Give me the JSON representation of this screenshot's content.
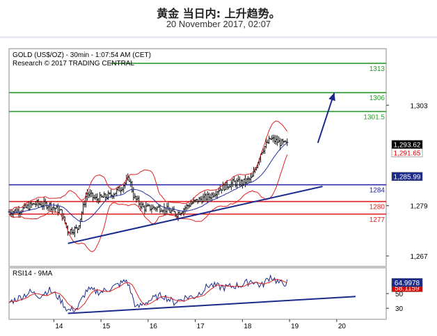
{
  "page": {
    "title": "黄金 当日内: 上升趋势。",
    "subtitle": "20 November 2017, 02:07"
  },
  "chart_data": {
    "type": "candlestick",
    "header_line1": "GOLD (US$/OZ) - 30min - 1:07:54 AM (CET)",
    "header_line2": "Research © 2017 TRADING CENTRAL",
    "x_tick_labels": [
      "14",
      "15",
      "16",
      "17",
      "18",
      "19",
      "20"
    ],
    "x_tick_days": [
      14,
      15,
      16,
      17,
      18,
      19,
      20
    ],
    "x_range_days": [
      13.05,
      21.05
    ],
    "price_axis": {
      "ticks": [
        1267,
        1279,
        1303
      ],
      "tick_labels": [
        "1,267",
        "1,279",
        "1,303"
      ],
      "ylim": [
        1264.5,
        1316.5
      ]
    },
    "price_tags": [
      {
        "label": "1,293.62",
        "value": 1293.62,
        "bg": "#000000",
        "color": "#ffffff"
      },
      {
        "label": "1,291.65",
        "value": 1291.65,
        "bg": "#ffffff",
        "color": "#e00000"
      },
      {
        "label": "1,285.99",
        "value": 1285.99,
        "bg": "#1b2a8c",
        "color": "#ffffff"
      }
    ],
    "levels": [
      {
        "label": "1313",
        "value": 1313,
        "color": "#2e9a2e",
        "x_start_day": 15.2
      },
      {
        "label": "1306",
        "value": 1306,
        "color": "#2e9a2e",
        "x_start_day": 13.05
      },
      {
        "label": "1301.5",
        "value": 1301.5,
        "color": "#2e9a2e",
        "x_start_day": 13.05
      },
      {
        "label": "1284",
        "value": 1284,
        "color": "#2020a0",
        "x_start_day": 13.05
      },
      {
        "label": "1280",
        "value": 1280,
        "color": "#e02020",
        "x_start_day": 13.05
      },
      {
        "label": "1277",
        "value": 1277,
        "color": "#e02020",
        "x_start_day": 13.05
      }
    ],
    "trendline": {
      "from": [
        14.3,
        1270.0
      ],
      "to": [
        19.7,
        1283.6
      ],
      "color": "#1b2a8c"
    },
    "forecast_arrow": {
      "from": [
        19.6,
        1294.0
      ],
      "to": [
        19.95,
        1306.0
      ],
      "color": "#1b2a8c"
    },
    "price_anchors": [
      [
        13.05,
        1277.5
      ],
      [
        13.3,
        1278.0
      ],
      [
        13.6,
        1279.5
      ],
      [
        13.9,
        1279.2
      ],
      [
        14.15,
        1277.5
      ],
      [
        14.3,
        1273.0
      ],
      [
        14.5,
        1273.5
      ],
      [
        14.7,
        1282.0
      ],
      [
        14.9,
        1280.5
      ],
      [
        15.2,
        1281.5
      ],
      [
        15.4,
        1283.0
      ],
      [
        15.6,
        1285.5
      ],
      [
        15.7,
        1281.0
      ],
      [
        15.9,
        1278.5
      ],
      [
        16.3,
        1278.5
      ],
      [
        16.6,
        1277.0
      ],
      [
        16.9,
        1279.5
      ],
      [
        17.1,
        1280.5
      ],
      [
        17.3,
        1281.2
      ],
      [
        17.5,
        1283.0
      ],
      [
        17.8,
        1284.5
      ],
      [
        18.0,
        1284.5
      ],
      [
        18.2,
        1285.5
      ],
      [
        18.4,
        1292.0
      ],
      [
        18.6,
        1295.0
      ],
      [
        18.8,
        1294.0
      ],
      [
        18.95,
        1293.6
      ]
    ],
    "rsi": {
      "label": "RSI14 - 9MA",
      "ticks": [
        30,
        50
      ],
      "ylim": [
        15,
        85
      ],
      "tags": [
        {
          "label": "58.1159",
          "value": 58.1159,
          "bg": "#e00000",
          "color": "#ffffff"
        },
        {
          "label": "64.9978",
          "value": 64.9978,
          "bg": "#1b2a8c",
          "color": "#ffffff"
        }
      ],
      "trendline": {
        "from": [
          14.3,
          23.0
        ],
        "to": [
          20.4,
          46.0
        ],
        "color": "#1b2a8c"
      },
      "anchors": [
        [
          13.05,
          38
        ],
        [
          13.25,
          44
        ],
        [
          13.5,
          52
        ],
        [
          13.7,
          47
        ],
        [
          13.9,
          55
        ],
        [
          14.1,
          45
        ],
        [
          14.3,
          27
        ],
        [
          14.5,
          30
        ],
        [
          14.7,
          55
        ],
        [
          15.0,
          52
        ],
        [
          15.3,
          60
        ],
        [
          15.55,
          68
        ],
        [
          15.75,
          30
        ],
        [
          16.0,
          40
        ],
        [
          16.3,
          48
        ],
        [
          16.55,
          38
        ],
        [
          16.8,
          45
        ],
        [
          17.0,
          46
        ],
        [
          17.3,
          62
        ],
        [
          17.6,
          58
        ],
        [
          18.0,
          62
        ],
        [
          18.2,
          68
        ],
        [
          18.4,
          60
        ],
        [
          18.6,
          74
        ],
        [
          18.8,
          63
        ],
        [
          18.95,
          65
        ]
      ]
    }
  }
}
